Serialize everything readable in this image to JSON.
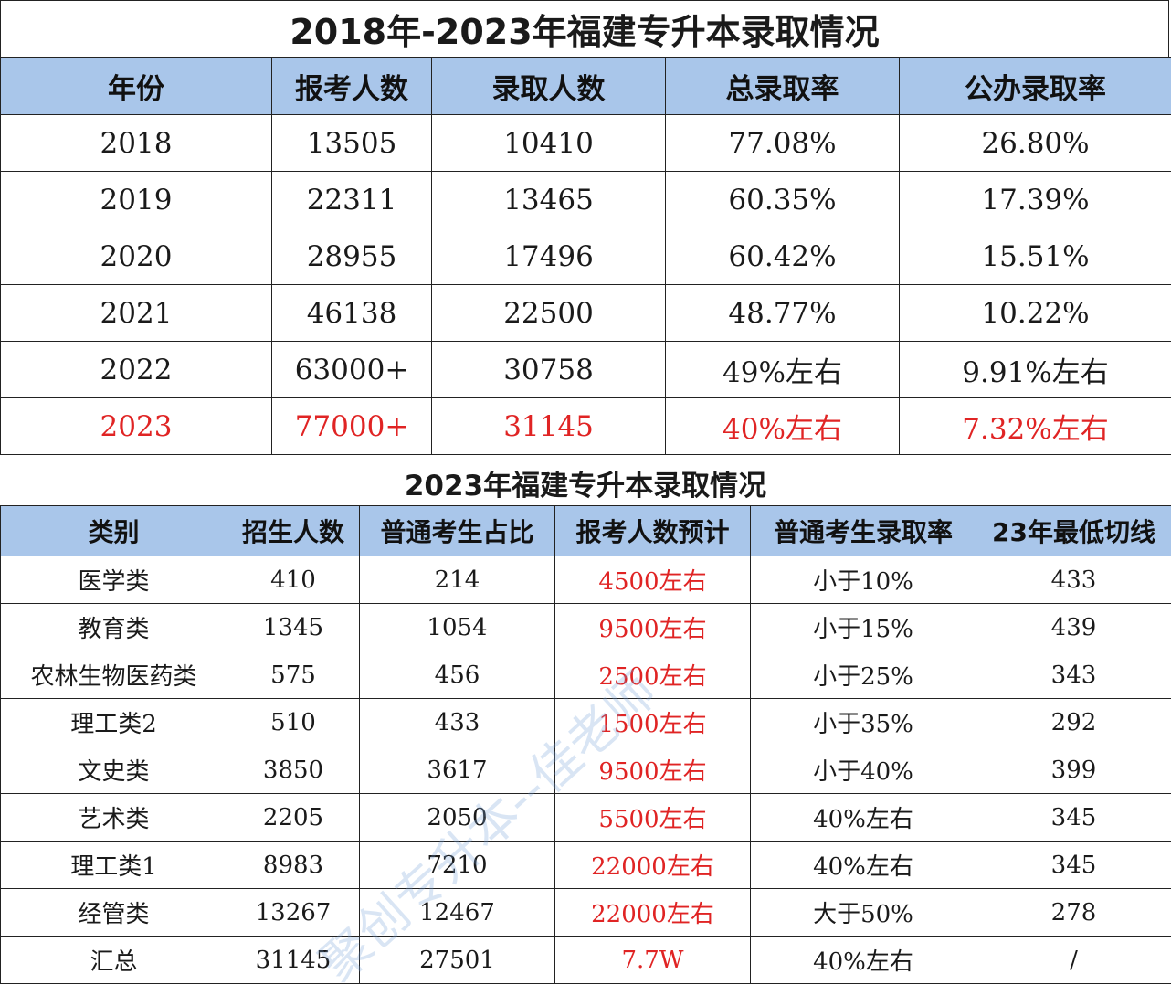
{
  "title": "2018年-2023年福建专升本录取情况",
  "table1": {
    "headers": [
      "年份",
      "报考人数",
      "录取人数",
      "总录取率",
      "公办录取率"
    ],
    "rows": [
      [
        "2018",
        "13505",
        "10410",
        "77.08%",
        "26.80%"
      ],
      [
        "2019",
        "22311",
        "13465",
        "60.35%",
        "17.39%"
      ],
      [
        "2020",
        "28955",
        "17496",
        "60.42%",
        "15.51%"
      ],
      [
        "2021",
        "46138",
        "22500",
        "48.77%",
        "10.22%"
      ],
      [
        "2022",
        "63000+",
        "30758",
        "49%左右",
        "9.91%左右"
      ],
      [
        "2023",
        "77000+",
        "31145",
        "40%左右",
        "7.32%左右"
      ]
    ]
  },
  "subtitle": "2023年福建专升本录取情况",
  "table2": {
    "headers": [
      "类别",
      "招生人数",
      "普通考生占比",
      "报考人数预计",
      "普通考生录取率",
      "23年最低切线"
    ],
    "rows": [
      [
        "医学类",
        "410",
        "214",
        "4500左右",
        "小于10%",
        "433"
      ],
      [
        "教育类",
        "1345",
        "1054",
        "9500左右",
        "小于15%",
        "439"
      ],
      [
        "农林生物医药类",
        "575",
        "456",
        "2500左右",
        "小于25%",
        "343"
      ],
      [
        "理工类2",
        "510",
        "433",
        "1500左右",
        "小于35%",
        "292"
      ],
      [
        "文史类",
        "3850",
        "3617",
        "9500左右",
        "小于40%",
        "399"
      ],
      [
        "艺术类",
        "2205",
        "2050",
        "5500左右",
        "40%左右",
        "345"
      ],
      [
        "理工类1",
        "8983",
        "7210",
        "22000左右",
        "40%左右",
        "345"
      ],
      [
        "经管类",
        "13267",
        "12467",
        "22000左右",
        "大于50%",
        "278"
      ],
      [
        "汇总",
        "31145",
        "27501",
        "7.7W",
        "40%左右",
        "/"
      ]
    ]
  },
  "watermark": "聚创专升本--佳老师",
  "colors": {
    "header_bg": "#a9c6ea",
    "highlight": "#e02424",
    "border": "#222222"
  }
}
